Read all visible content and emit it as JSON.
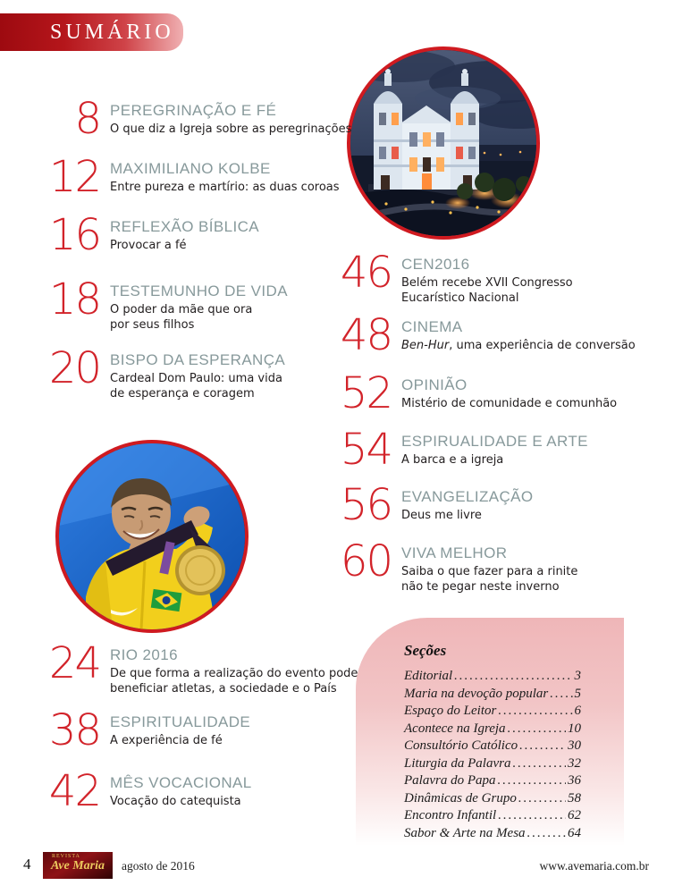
{
  "header": {
    "title": "SUMÁRIO"
  },
  "colors": {
    "accent_red": "#d2232a",
    "title_gray": "#87999b",
    "header_gradient_start": "#9d0a10",
    "pink_box_top": "#efb6b8"
  },
  "toc": {
    "left": [
      {
        "page": "8",
        "title": "PEREGRINAÇÃO E FÉ",
        "lines": [
          "O que diz a Igreja sobre as peregrinações"
        ]
      },
      {
        "page": "12",
        "title": "MAXIMILIANO KOLBE",
        "lines": [
          "Entre pureza e martírio: as duas coroas"
        ]
      },
      {
        "page": "16",
        "title": "REFLEXÃO BÍBLICA",
        "lines": [
          "Provocar a fé"
        ]
      },
      {
        "page": "18",
        "title": "TESTEMUNHO DE VIDA",
        "lines": [
          "O poder da mãe que ora",
          "por seus filhos"
        ]
      },
      {
        "page": "20",
        "title": "BISPO DA ESPERANÇA",
        "lines": [
          "Cardeal Dom Paulo: uma vida",
          "de esperança e coragem"
        ]
      },
      {
        "page": "24",
        "title": "RIO 2016",
        "lines": [
          "De que forma a realização do evento pode",
          "beneficiar atletas, a sociedade e o País"
        ]
      },
      {
        "page": "38",
        "title": "ESPIRITUALIDADE",
        "lines": [
          "A experiência de fé"
        ]
      },
      {
        "page": "42",
        "title": "MÊS VOCACIONAL",
        "lines": [
          "Vocação do catequista"
        ]
      }
    ],
    "right": [
      {
        "page": "46",
        "title": "CEN2016",
        "lines": [
          "Belém recebe XVII Congresso",
          "Eucarístico Nacional"
        ]
      },
      {
        "page": "48",
        "title": "CINEMA",
        "lines": [
          "Ben-Hur, uma experiência de conversão"
        ],
        "em_prefix": "Ben-Hur"
      },
      {
        "page": "52",
        "title": "OPINIÃO",
        "lines": [
          "Mistério de comunidade e comunhão"
        ]
      },
      {
        "page": "54",
        "title": "ESPIRUALIDADE E ARTE",
        "lines": [
          "A barca e a igreja"
        ]
      },
      {
        "page": "56",
        "title": "EVANGELIZAÇÃO",
        "lines": [
          "Deus me livre"
        ]
      },
      {
        "page": "60",
        "title": "VIVA MELHOR",
        "lines": [
          "Saiba o que fazer para a rinite",
          "não te pegar neste inverno"
        ]
      }
    ]
  },
  "secoes": {
    "heading": "Seções",
    "items": [
      {
        "label": "Editorial",
        "page": "3"
      },
      {
        "label": "Maria na devoção popular",
        "page": "5"
      },
      {
        "label": "Espaço do Leitor",
        "page": "6"
      },
      {
        "label": "Acontece na Igreja",
        "page": "10"
      },
      {
        "label": "Consultório Católico",
        "page": "30"
      },
      {
        "label": "Liturgia da Palavra",
        "page": "32"
      },
      {
        "label": "Palavra do Papa",
        "page": "36"
      },
      {
        "label": "Dinâmicas de Grupo",
        "page": "58"
      },
      {
        "label": "Encontro Infantil",
        "page": "62"
      },
      {
        "label": "Sabor & Arte na Mesa",
        "page": "64"
      }
    ]
  },
  "footer": {
    "page_number": "4",
    "logo_top": "Revista",
    "logo_script": "Ave Maria",
    "date": "agosto de 2016",
    "url": "www.avemaria.com.br"
  }
}
